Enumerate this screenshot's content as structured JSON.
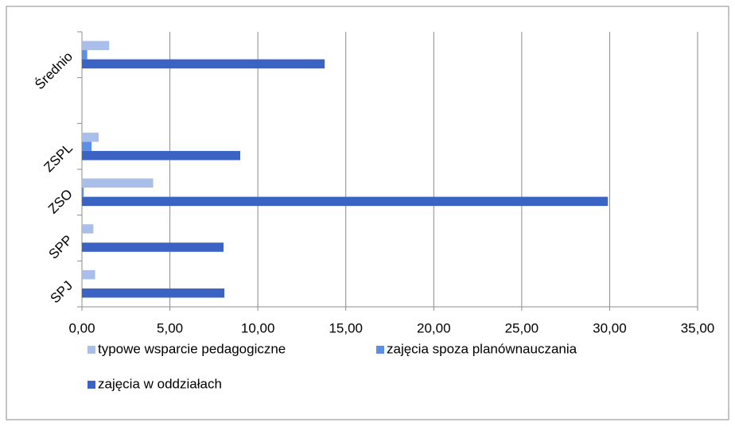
{
  "chart_data": {
    "type": "bar",
    "orientation": "horizontal",
    "categories": [
      "SPJ",
      "SPP",
      "ZSO",
      "ZSPL",
      null,
      "Średnio"
    ],
    "series": [
      {
        "name": "typowe wsparcie pedagogiczne",
        "color": "#a9bfea",
        "values": [
          0.75,
          0.65,
          4.05,
          0.95,
          null,
          1.55
        ]
      },
      {
        "name": "zajęcia spoza planównauczania",
        "color": "#5b8ee6",
        "values": [
          0,
          0,
          0.1,
          0.55,
          null,
          0.3
        ]
      },
      {
        "name": "zajęcia w oddziałach",
        "color": "#3b63c4",
        "values": [
          8.1,
          8.05,
          29.9,
          9.0,
          null,
          13.8
        ]
      }
    ],
    "xlim": [
      0,
      35
    ],
    "xticks": [
      {
        "value": 0,
        "label": "0,00"
      },
      {
        "value": 5,
        "label": "5,00"
      },
      {
        "value": 10,
        "label": "10,00"
      },
      {
        "value": 15,
        "label": "15,00"
      },
      {
        "value": 20,
        "label": "20,00"
      },
      {
        "value": 25,
        "label": "25,00"
      },
      {
        "value": 30,
        "label": "30,00"
      },
      {
        "value": 35,
        "label": "35,00"
      }
    ],
    "grid": true,
    "legend": "bottom"
  }
}
